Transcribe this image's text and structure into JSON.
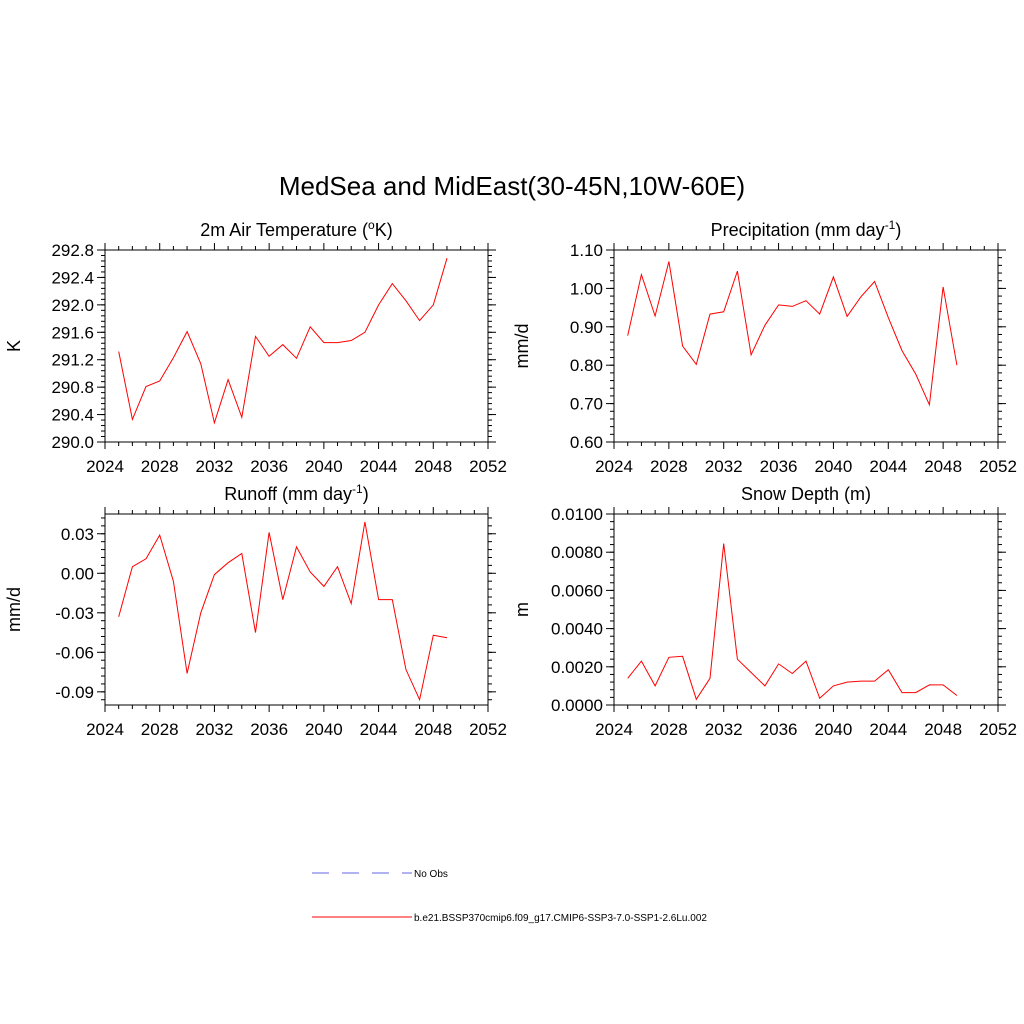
{
  "title": "MedSea and MidEast(30-45N,10W-60E)",
  "line_color": "#ff0000",
  "obs_color": "#9999ee",
  "legend": {
    "obs_label": "No Obs",
    "model_label": "b.e21.BSSP370cmip6.f09_g17.CMIP6-SSP3-7.0-SSP1-2.6Lu.002"
  },
  "chart_data": [
    {
      "type": "line",
      "title": "2m Air Temperature (",
      "title_sup": "o",
      "title_tail": "K)",
      "ylabel": "K",
      "xlim": [
        2024,
        2052
      ],
      "ylim": [
        290.0,
        292.8
      ],
      "xticks": [
        2024,
        2028,
        2032,
        2036,
        2040,
        2044,
        2048,
        2052
      ],
      "yticks": [
        "290.0",
        "290.4",
        "290.8",
        "291.2",
        "291.6",
        "292.0",
        "292.4",
        "292.8"
      ],
      "x": [
        2025,
        2026,
        2027,
        2028,
        2029,
        2030,
        2031,
        2032,
        2033,
        2034,
        2035,
        2036,
        2037,
        2038,
        2039,
        2040,
        2041,
        2042,
        2043,
        2044,
        2045,
        2046,
        2047,
        2048,
        2049
      ],
      "series": [
        {
          "values": [
            291.32,
            290.33,
            290.81,
            290.89,
            291.23,
            291.61,
            291.14,
            290.28,
            290.91,
            290.36,
            291.54,
            291.25,
            291.42,
            291.22,
            291.68,
            291.45,
            291.45,
            291.48,
            291.6,
            292.0,
            292.31,
            292.06,
            291.77,
            292.0,
            292.68
          ]
        }
      ]
    },
    {
      "type": "line",
      "title": "Precipitation (mm day",
      "title_sup": "-1",
      "title_tail": ")",
      "ylabel": "mm/d",
      "xlim": [
        2024,
        2052
      ],
      "ylim": [
        0.6,
        1.1
      ],
      "xticks": [
        2024,
        2028,
        2032,
        2036,
        2040,
        2044,
        2048,
        2052
      ],
      "yticks": [
        "0.60",
        "0.70",
        "0.80",
        "0.90",
        "1.00",
        "1.10"
      ],
      "x": [
        2025,
        2026,
        2027,
        2028,
        2029,
        2030,
        2031,
        2032,
        2033,
        2034,
        2035,
        2036,
        2037,
        2038,
        2039,
        2040,
        2041,
        2042,
        2043,
        2044,
        2045,
        2046,
        2047,
        2048,
        2049
      ],
      "series": [
        {
          "values": [
            0.877,
            1.036,
            0.928,
            1.07,
            0.85,
            0.802,
            0.933,
            0.939,
            1.045,
            0.827,
            0.904,
            0.957,
            0.953,
            0.968,
            0.933,
            1.03,
            0.927,
            0.978,
            1.018,
            0.924,
            0.838,
            0.777,
            0.697,
            1.004,
            0.8
          ]
        }
      ]
    },
    {
      "type": "line",
      "title": "Runoff (mm day",
      "title_sup": "-1",
      "title_tail": ")",
      "ylabel": "mm/d",
      "xlim": [
        2024,
        2052
      ],
      "ylim": [
        -0.1,
        0.045
      ],
      "xticks": [
        2024,
        2028,
        2032,
        2036,
        2040,
        2044,
        2048,
        2052
      ],
      "ytick_values": [
        -0.09,
        -0.06,
        -0.03,
        0.0,
        0.03
      ],
      "yticks": [
        "-0.09",
        "-0.06",
        "-0.03",
        "0.00",
        "0.03"
      ],
      "x": [
        2025,
        2026,
        2027,
        2028,
        2029,
        2030,
        2031,
        2032,
        2033,
        2034,
        2035,
        2036,
        2037,
        2038,
        2039,
        2040,
        2041,
        2042,
        2043,
        2044,
        2045,
        2046,
        2047,
        2048,
        2049
      ],
      "series": [
        {
          "values": [
            -0.033,
            0.005,
            0.011,
            0.029,
            -0.006,
            -0.076,
            -0.03,
            -0.001,
            0.008,
            0.015,
            -0.045,
            0.031,
            -0.02,
            0.02,
            0.001,
            -0.01,
            0.005,
            -0.023,
            0.039,
            -0.02,
            -0.02,
            -0.073,
            -0.096,
            -0.047,
            -0.049
          ]
        }
      ]
    },
    {
      "type": "line",
      "title": "Snow Depth (m)",
      "title_sup": "",
      "title_tail": "",
      "ylabel": "m",
      "xlim": [
        2024,
        2052
      ],
      "ylim": [
        0.0,
        0.01
      ],
      "xticks": [
        2024,
        2028,
        2032,
        2036,
        2040,
        2044,
        2048,
        2052
      ],
      "yticks": [
        "0.0000",
        "0.0020",
        "0.0040",
        "0.0060",
        "0.0080",
        "0.0100"
      ],
      "x": [
        2025,
        2026,
        2027,
        2028,
        2029,
        2030,
        2031,
        2032,
        2033,
        2034,
        2035,
        2036,
        2037,
        2038,
        2039,
        2040,
        2041,
        2042,
        2043,
        2044,
        2045,
        2046,
        2047,
        2048,
        2049
      ],
      "series": [
        {
          "values": [
            0.0014,
            0.0023,
            0.001,
            0.0025,
            0.00255,
            0.0003,
            0.0014,
            0.00845,
            0.0024,
            0.0017,
            0.001,
            0.00215,
            0.00165,
            0.0023,
            0.00035,
            0.001,
            0.0012,
            0.00125,
            0.00125,
            0.00185,
            0.00065,
            0.00065,
            0.00105,
            0.00105,
            0.0005
          ]
        }
      ]
    }
  ]
}
